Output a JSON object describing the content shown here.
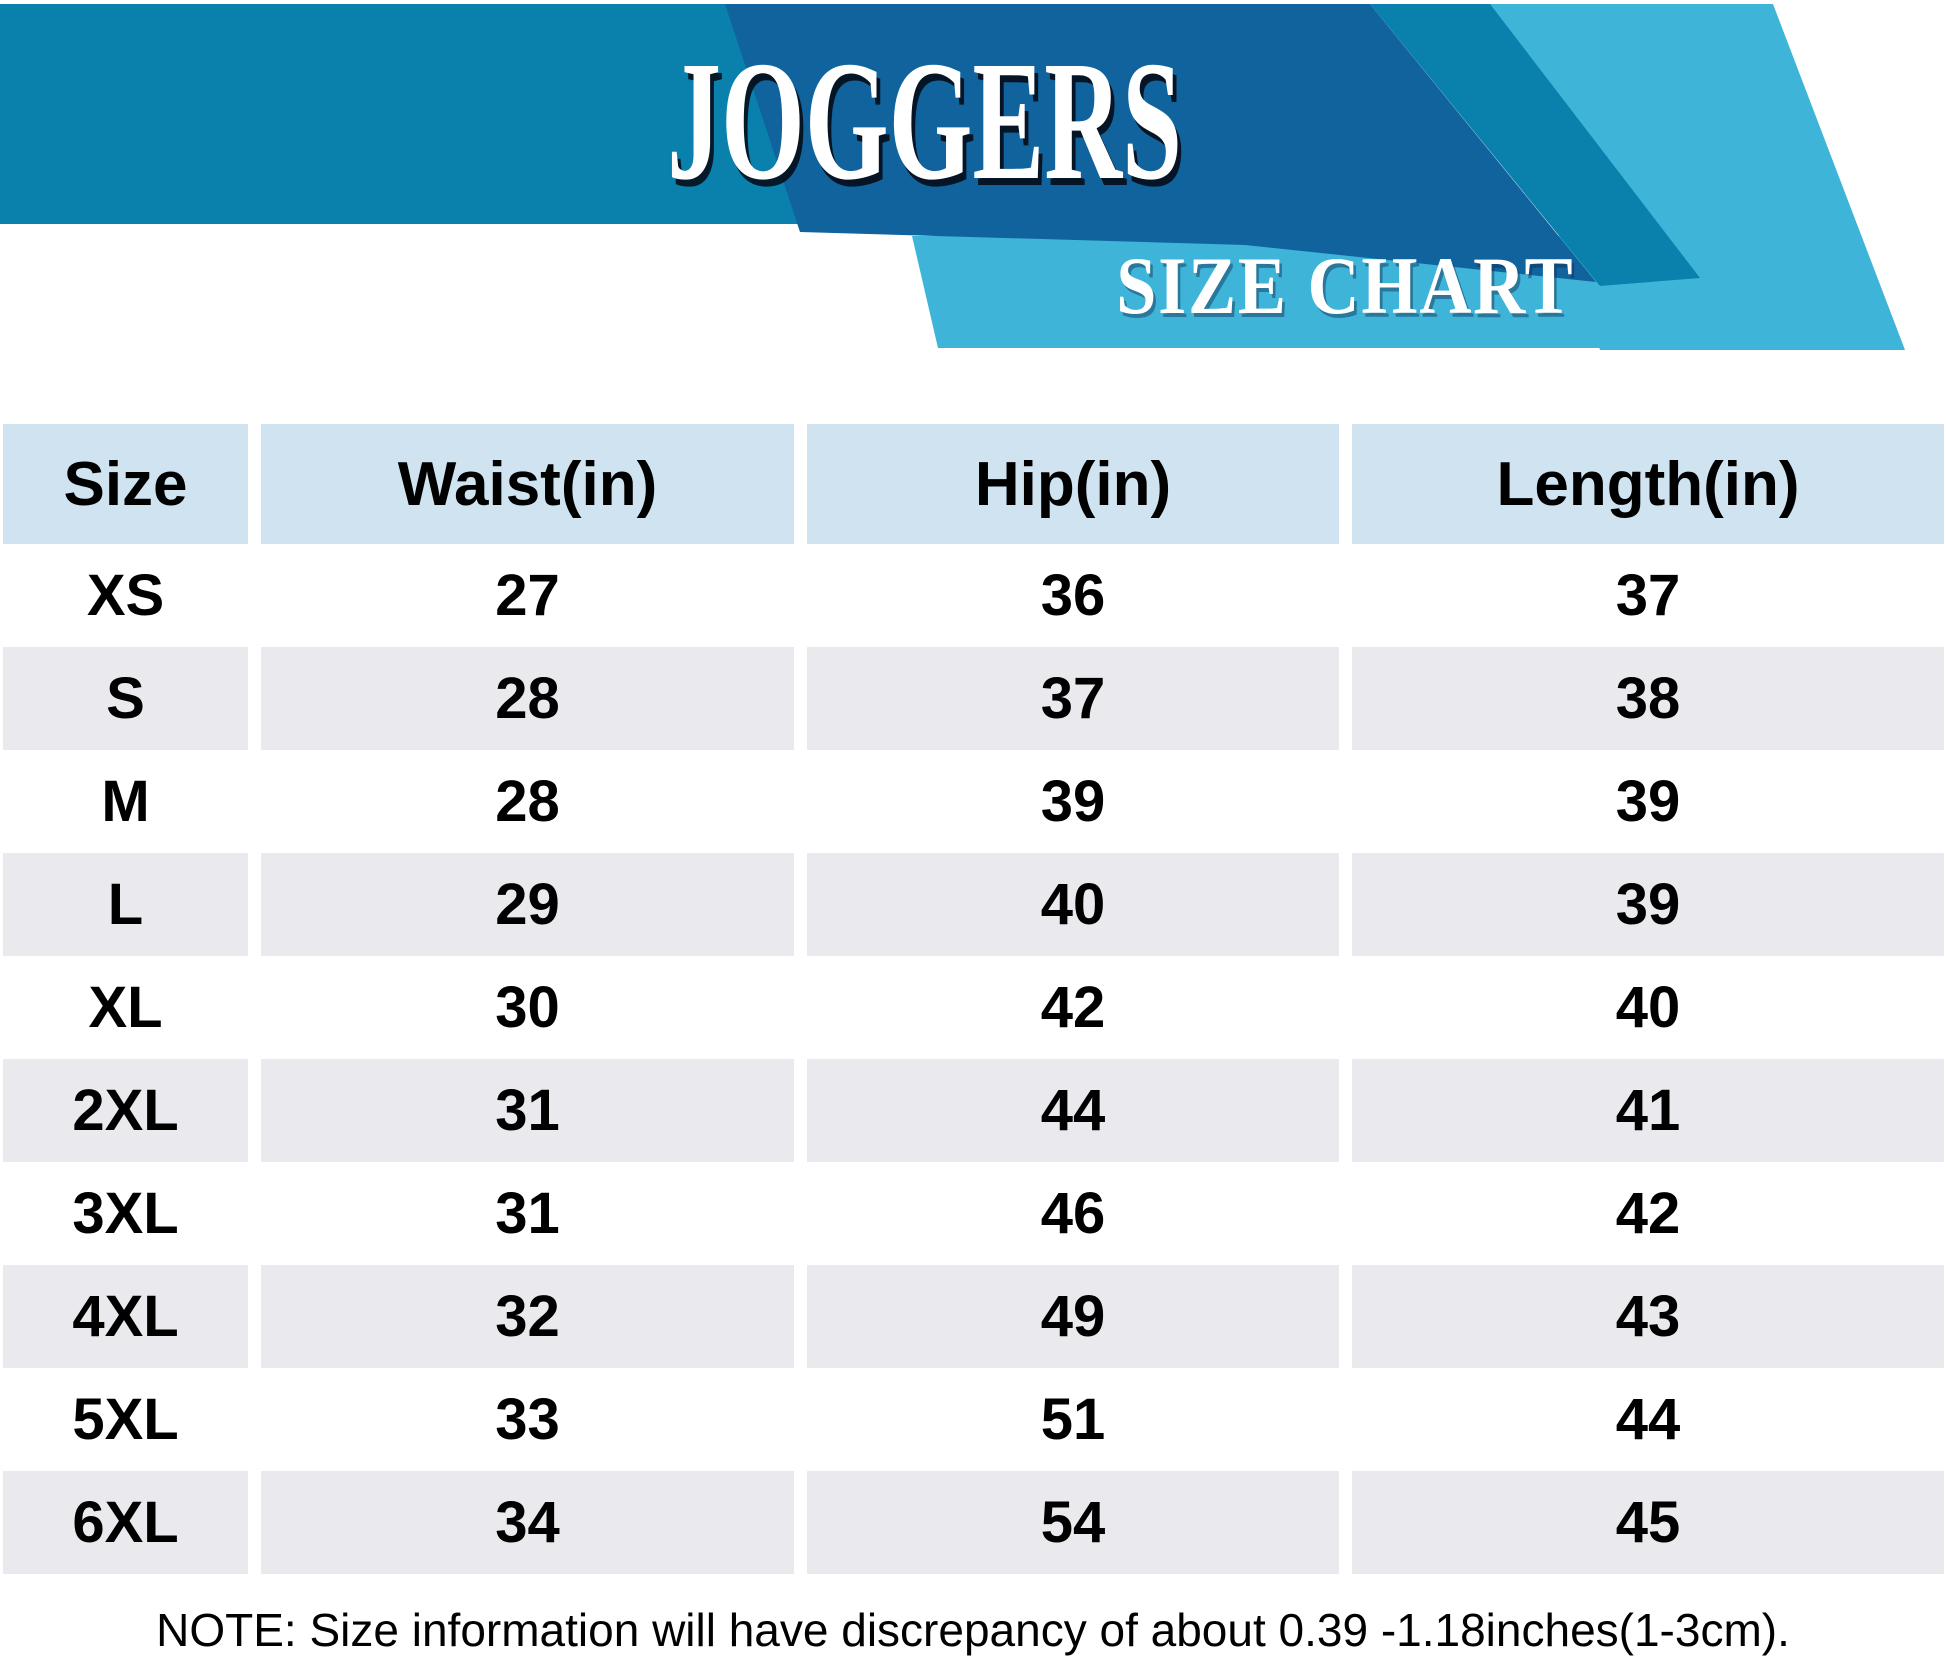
{
  "banner": {
    "title": "JOGGERS",
    "subtitle": "SIZE CHART",
    "colors": {
      "medium_blue": "#0a81ad",
      "dark_blue": "#11639d",
      "light_blue": "#3eb4d8"
    }
  },
  "table": {
    "columns": [
      "Size",
      "Waist(in)",
      "Hip(in)",
      "Length(in)"
    ],
    "rows": [
      {
        "size": "XS",
        "waist": "27",
        "hip": "36",
        "length": "37"
      },
      {
        "size": "S",
        "waist": "28",
        "hip": "37",
        "length": "38"
      },
      {
        "size": "M",
        "waist": "28",
        "hip": "39",
        "length": "39"
      },
      {
        "size": "L",
        "waist": "29",
        "hip": "40",
        "length": "39"
      },
      {
        "size": "XL",
        "waist": "30",
        "hip": "42",
        "length": "40"
      },
      {
        "size": "2XL",
        "waist": "31",
        "hip": "44",
        "length": "41"
      },
      {
        "size": "3XL",
        "waist": "31",
        "hip": "46",
        "length": "42"
      },
      {
        "size": "4XL",
        "waist": "32",
        "hip": "49",
        "length": "43"
      },
      {
        "size": "5XL",
        "waist": "33",
        "hip": "51",
        "length": "44"
      },
      {
        "size": "6XL",
        "waist": "34",
        "hip": "54",
        "length": "45"
      }
    ],
    "colors": {
      "header_bg": "#cfe3f0",
      "stripe_bg": "#e9e9ee",
      "row_bg": "#ffffff",
      "text": "#000000"
    }
  },
  "note": "NOTE: Size information will have discrepancy of about 0.39 -1.18inches(1-3cm).",
  "chart_data": {
    "type": "table",
    "title": "JOGGERS SIZE CHART",
    "columns": [
      "Size",
      "Waist(in)",
      "Hip(in)",
      "Length(in)"
    ],
    "rows": [
      [
        "XS",
        27,
        36,
        37
      ],
      [
        "S",
        28,
        37,
        38
      ],
      [
        "M",
        28,
        39,
        39
      ],
      [
        "L",
        29,
        40,
        39
      ],
      [
        "XL",
        30,
        42,
        40
      ],
      [
        "2XL",
        31,
        44,
        41
      ],
      [
        "3XL",
        31,
        46,
        42
      ],
      [
        "4XL",
        32,
        49,
        43
      ],
      [
        "5XL",
        33,
        51,
        44
      ],
      [
        "6XL",
        34,
        54,
        45
      ]
    ]
  }
}
